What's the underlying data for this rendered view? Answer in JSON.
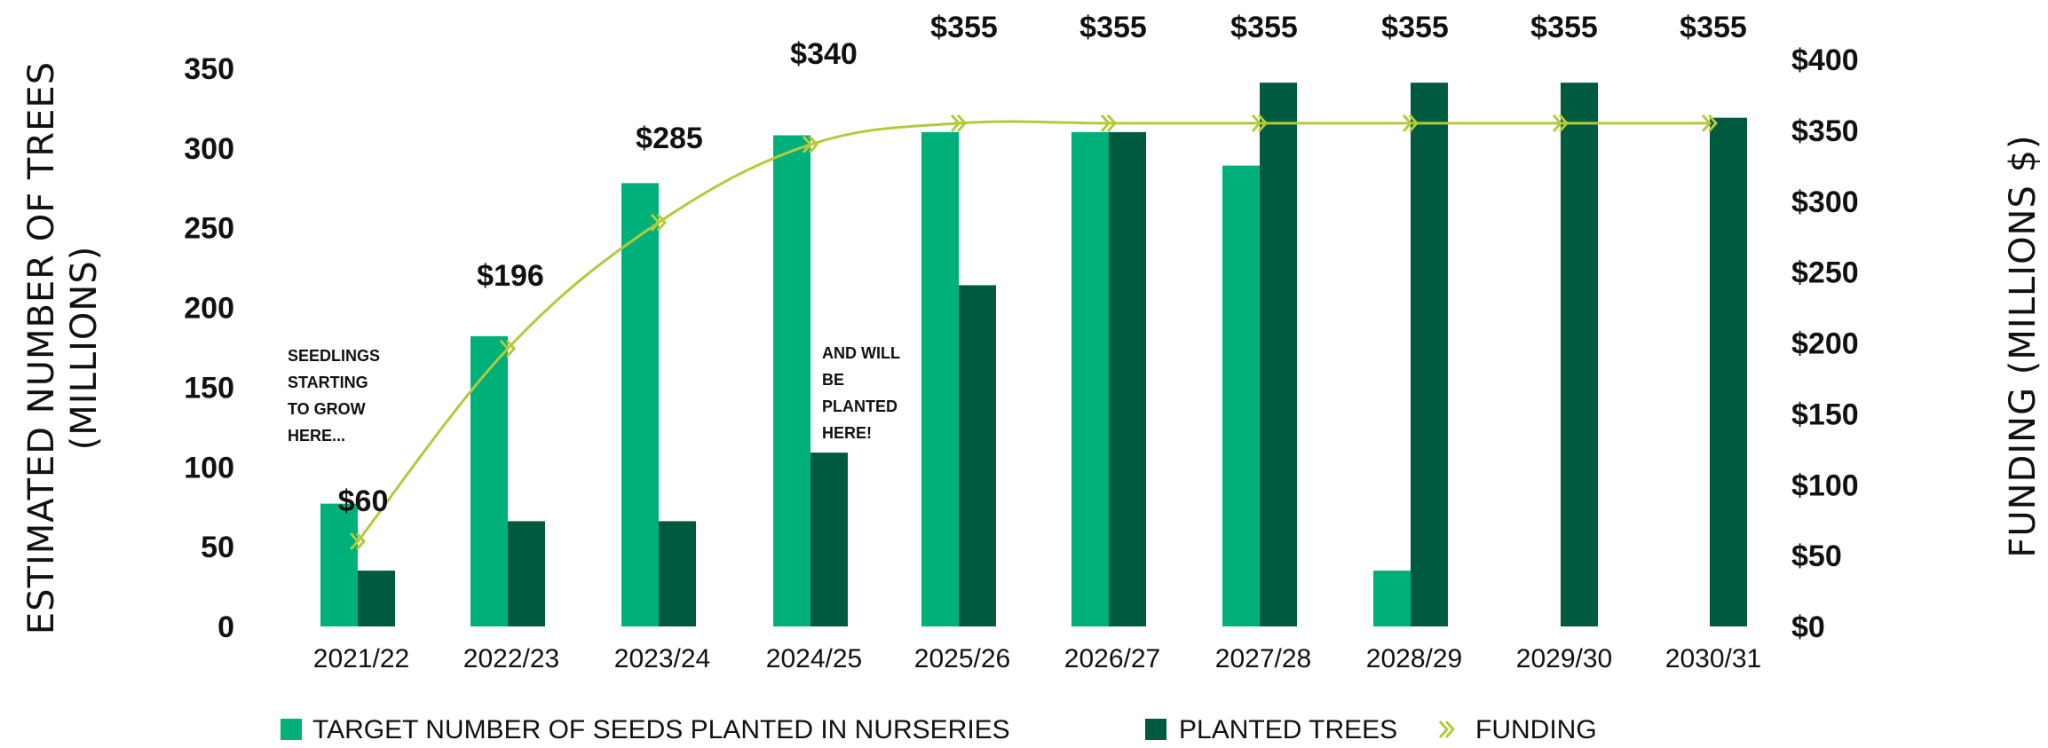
{
  "chart_data": {
    "type": "bar",
    "categories": [
      "2021/22",
      "2022/23",
      "2023/24",
      "2024/25",
      "2025/26",
      "2026/27",
      "2027/28",
      "2028/29",
      "2029/30",
      "2030/31"
    ],
    "series": [
      {
        "name": "TARGET NUMBER OF SEEDS PLANTED IN NURSERIES",
        "type": "bar",
        "axis": "left",
        "color": "#00b07a",
        "values": [
          77,
          182,
          278,
          308,
          310,
          310,
          289,
          35,
          null,
          null
        ]
      },
      {
        "name": "PLANTED TREES",
        "type": "bar",
        "axis": "left",
        "color": "#005a40",
        "values": [
          35,
          66,
          66,
          109,
          214,
          310,
          341,
          341,
          341,
          319
        ]
      },
      {
        "name": "FUNDING",
        "type": "line",
        "axis": "right",
        "color": "#b5c93a",
        "values": [
          60,
          196,
          285,
          340,
          355,
          355,
          355,
          355,
          355,
          355
        ],
        "labels": [
          "$60",
          "$196",
          "$285",
          "$340",
          "$355",
          "$355",
          "$355",
          "$355",
          "$355",
          "$355"
        ]
      }
    ],
    "ylabel": "ESTIMATED NUMBER OF TREES (MILLIONS)",
    "y2label": "FUNDING (MILLIONS $)",
    "ylim": [
      0,
      350
    ],
    "y2lim": [
      0,
      400
    ],
    "yticks": [
      "0",
      "50",
      "100",
      "150",
      "200",
      "250",
      "300",
      "350"
    ],
    "y2ticks": [
      "$0",
      "$50",
      "$100",
      "$150",
      "$200",
      "$250",
      "$300",
      "$350",
      "$400"
    ],
    "annotations": [
      {
        "lines": [
          "SEEDLINGS",
          "STARTING",
          "TO GROW",
          "HERE..."
        ]
      },
      {
        "lines": [
          "AND WILL",
          "BE",
          "PLANTED",
          "HERE!"
        ]
      }
    ],
    "legend_position": "bottom",
    "grid": false
  }
}
